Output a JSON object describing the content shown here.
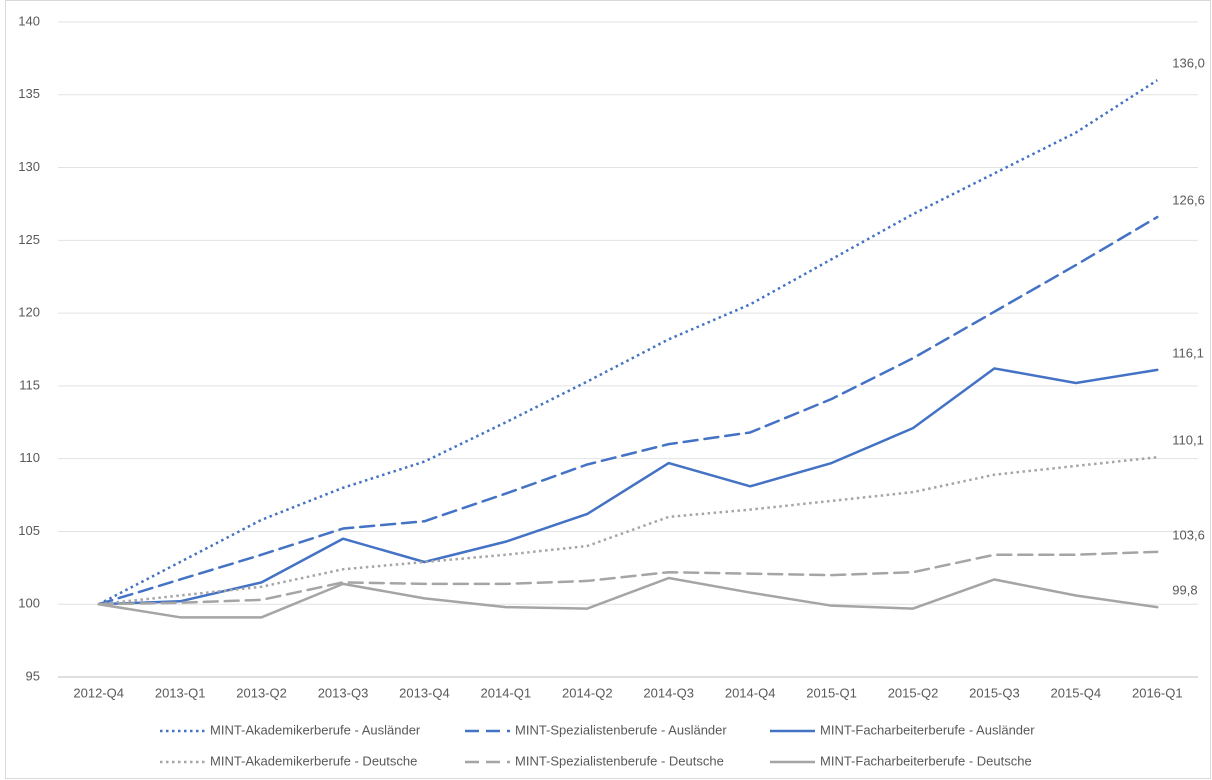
{
  "chart_data": {
    "type": "line",
    "categories": [
      "2012-Q4",
      "2013-Q1",
      "2013-Q2",
      "2013-Q3",
      "2013-Q4",
      "2014-Q1",
      "2014-Q2",
      "2014-Q3",
      "2014-Q4",
      "2015-Q1",
      "2015-Q2",
      "2015-Q3",
      "2015-Q4",
      "2016-Q1"
    ],
    "ylim": [
      95,
      140
    ],
    "yticks": [
      95,
      100,
      105,
      110,
      115,
      120,
      125,
      130,
      135,
      140
    ],
    "grid": true,
    "legend": "bottom",
    "series": [
      {
        "name": "MINT-Akademikerberufe - Ausländer",
        "color": "#4472c4",
        "dash": "dotted",
        "values": [
          100,
          102.9,
          105.8,
          108.0,
          109.8,
          112.5,
          115.3,
          118.2,
          120.6,
          123.7,
          126.8,
          129.6,
          132.4,
          136.0
        ],
        "value_labels": [
          null,
          null,
          null,
          null,
          null,
          null,
          null,
          null,
          null,
          null,
          null,
          null,
          null,
          "136,0"
        ]
      },
      {
        "name": "MINT-Spezialistenberufe - Ausländer",
        "color": "#4472c4",
        "dash": "dashed",
        "values": [
          100,
          101.7,
          103.4,
          105.2,
          105.7,
          107.6,
          109.6,
          111.0,
          111.8,
          114.1,
          116.9,
          120.1,
          123.3,
          126.6
        ],
        "value_labels": [
          null,
          null,
          null,
          null,
          null,
          null,
          null,
          null,
          null,
          null,
          null,
          null,
          null,
          "126,6"
        ]
      },
      {
        "name": "MINT-Facharbeiterberufe - Ausländer",
        "color": "#4472c4",
        "dash": "solid",
        "values": [
          100,
          100.2,
          101.5,
          104.5,
          102.9,
          104.3,
          106.2,
          109.7,
          108.1,
          109.7,
          112.1,
          116.2,
          115.2,
          116.1
        ],
        "value_labels": [
          null,
          null,
          null,
          null,
          null,
          null,
          null,
          null,
          null,
          null,
          null,
          null,
          null,
          "116,1"
        ]
      },
      {
        "name": "MINT-Akademikerberufe - Deutsche",
        "color": "#a5a5a5",
        "dash": "dotted",
        "values": [
          100,
          100.6,
          101.2,
          102.4,
          102.9,
          103.4,
          104.0,
          106.0,
          106.5,
          107.1,
          107.7,
          108.9,
          109.5,
          110.1
        ],
        "value_labels": [
          null,
          null,
          null,
          null,
          null,
          null,
          null,
          null,
          null,
          null,
          null,
          null,
          null,
          "110,1"
        ]
      },
      {
        "name": "MINT-Spezialistenberufe - Deutsche",
        "color": "#a5a5a5",
        "dash": "dashed",
        "values": [
          100,
          100.1,
          100.3,
          101.5,
          101.4,
          101.4,
          101.6,
          102.2,
          102.1,
          102.0,
          102.2,
          103.4,
          103.4,
          103.6
        ],
        "value_labels": [
          null,
          null,
          null,
          null,
          null,
          null,
          null,
          null,
          null,
          null,
          null,
          null,
          null,
          "103,6"
        ]
      },
      {
        "name": "MINT-Facharbeiterberufe - Deutsche",
        "color": "#a5a5a5",
        "dash": "solid",
        "values": [
          100,
          99.1,
          99.1,
          101.4,
          100.4,
          99.8,
          99.7,
          101.8,
          100.8,
          99.9,
          99.7,
          101.7,
          100.6,
          99.8
        ],
        "value_labels": [
          null,
          null,
          null,
          null,
          null,
          null,
          null,
          null,
          null,
          null,
          null,
          null,
          null,
          "99,8"
        ]
      }
    ]
  }
}
